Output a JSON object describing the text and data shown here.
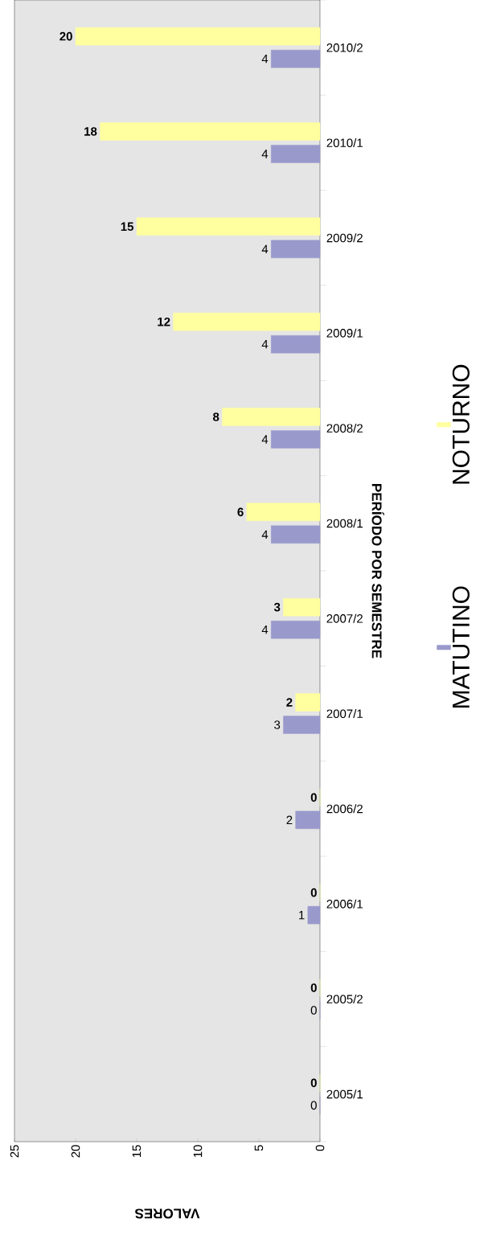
{
  "chart_data": {
    "type": "bar",
    "orientation": "horizontal",
    "xlabel": "VALORES",
    "ylabel": "PERÍODO POR SEMESTRE",
    "categories": [
      "2010/2",
      "2010/1",
      "2009/2",
      "2009/1",
      "2008/2",
      "2008/1",
      "2007/2",
      "2007/1",
      "2006/2",
      "2006/1",
      "2005/2",
      "2005/1"
    ],
    "series": [
      {
        "name": "NOTURNO",
        "color": "#ffffa0",
        "values": [
          20,
          18,
          15,
          12,
          8,
          6,
          3,
          2,
          0,
          0,
          0,
          0
        ]
      },
      {
        "name": "MATUTINO",
        "color": "#9999cc",
        "values": [
          4,
          4,
          4,
          4,
          4,
          4,
          4,
          3,
          2,
          1,
          0,
          0
        ]
      }
    ],
    "xlim": [
      25,
      0
    ],
    "xticks": [
      0,
      5,
      10,
      15,
      20,
      25
    ],
    "data_labels": true,
    "legend": "right"
  }
}
